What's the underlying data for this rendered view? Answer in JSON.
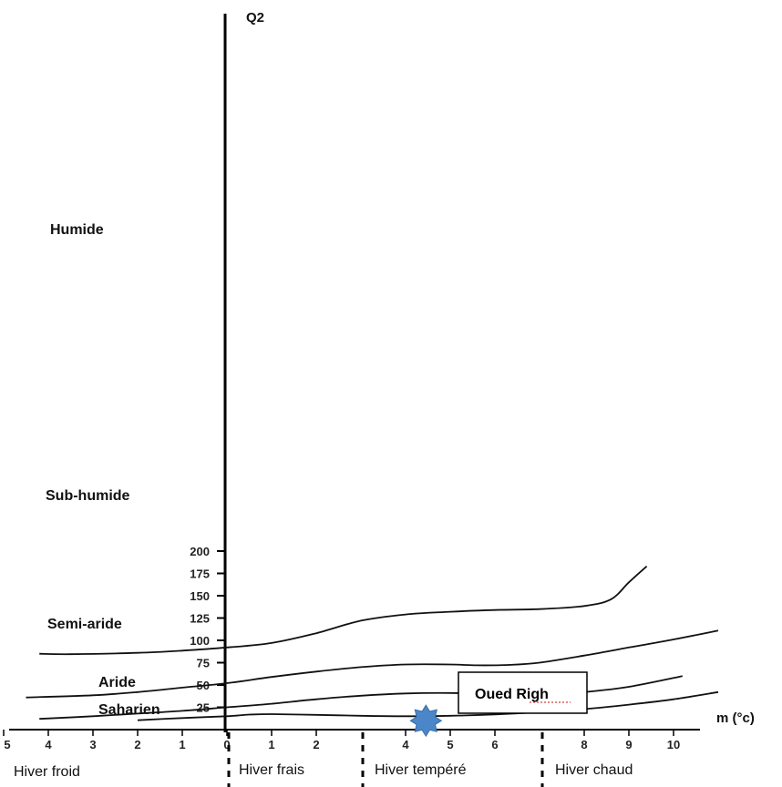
{
  "chart_data": {
    "type": "line",
    "title": "",
    "ylabel": "Q2",
    "xlabel": "m (°c)",
    "xlim": [
      -5,
      10.8
    ],
    "ylim": [
      0,
      200
    ],
    "y_ticks": [
      25,
      50,
      75,
      100,
      125,
      150,
      175,
      200
    ],
    "x_ticks": [
      -5,
      -4,
      -3,
      -2,
      -1,
      0,
      1,
      2,
      4,
      5,
      6,
      8,
      9,
      10
    ],
    "x_tick_labels": [
      "5",
      "4",
      "3",
      "2",
      "1",
      "0",
      "1",
      "2",
      "4",
      "5",
      "6",
      "8",
      "9",
      "10"
    ],
    "series": [
      {
        "values": [
          [
            -4.2,
            85
          ],
          [
            -3.5,
            84.5
          ],
          [
            -2,
            86
          ],
          [
            -1,
            88.5
          ],
          [
            0,
            92
          ],
          [
            1,
            97
          ],
          [
            2,
            108
          ],
          [
            3,
            122
          ],
          [
            4,
            129
          ],
          [
            5,
            132
          ],
          [
            6,
            134
          ],
          [
            7,
            135
          ],
          [
            8,
            138.5
          ],
          [
            8.6,
            146
          ],
          [
            9,
            165
          ],
          [
            9.4,
            183
          ]
        ]
      },
      {
        "values": [
          [
            -4.5,
            36
          ],
          [
            -3,
            38.5
          ],
          [
            -2,
            42
          ],
          [
            -1,
            47
          ],
          [
            0,
            52
          ],
          [
            1,
            59
          ],
          [
            2,
            65
          ],
          [
            3,
            70
          ],
          [
            4,
            73
          ],
          [
            5,
            73
          ],
          [
            5.6,
            72
          ],
          [
            6.3,
            72.5
          ],
          [
            7,
            75
          ],
          [
            8,
            83
          ],
          [
            9,
            92
          ],
          [
            10,
            101
          ],
          [
            11,
            111
          ]
        ]
      },
      {
        "values": [
          [
            -4.2,
            12
          ],
          [
            -3,
            15
          ],
          [
            -2,
            18
          ],
          [
            -1,
            21
          ],
          [
            0,
            25
          ],
          [
            1,
            29
          ],
          [
            2,
            34
          ],
          [
            3,
            38
          ],
          [
            4,
            40.5
          ],
          [
            5,
            41
          ],
          [
            5.5,
            40
          ],
          [
            6,
            38.2
          ],
          [
            6.5,
            37.7
          ],
          [
            7,
            38.5
          ],
          [
            8,
            42
          ],
          [
            9,
            48
          ],
          [
            10.2,
            60
          ]
        ]
      },
      {
        "values": [
          [
            -2,
            10.5
          ],
          [
            -1,
            13
          ],
          [
            0,
            15
          ],
          [
            0.5,
            16.8
          ],
          [
            1,
            17.3
          ],
          [
            2,
            16.5
          ],
          [
            3,
            15.5
          ],
          [
            4,
            15
          ],
          [
            5,
            15.5
          ],
          [
            6,
            17
          ],
          [
            7,
            19.5
          ],
          [
            8,
            23
          ],
          [
            9,
            28
          ],
          [
            10,
            34
          ],
          [
            11,
            42
          ]
        ]
      }
    ],
    "zones": [
      "Humide",
      "Sub-humide",
      "Semi-aride",
      "Aride",
      "Saharien"
    ],
    "winter_classes": [
      "Hiver froid",
      "Hiver frais",
      "Hiver tempéré",
      "Hiver chaud"
    ],
    "station": {
      "label": "Oued Righ",
      "x": 4.7,
      "y": 10,
      "color": "#4a86c8"
    }
  }
}
